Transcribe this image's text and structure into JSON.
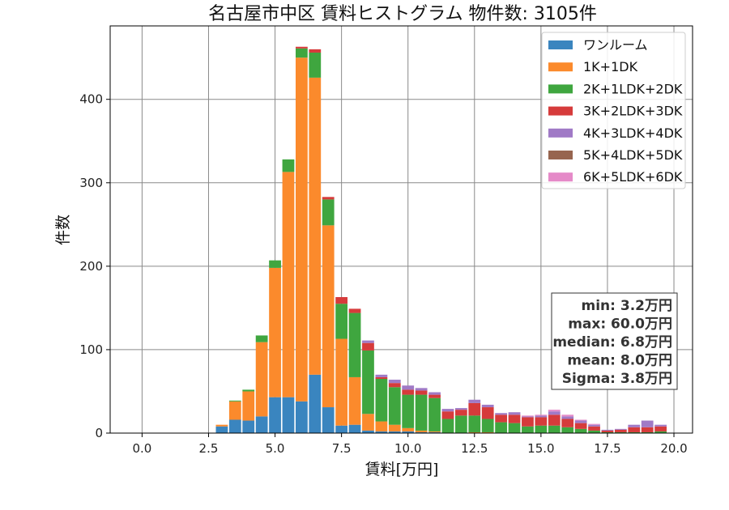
{
  "chart_data": {
    "type": "bar",
    "stacked": true,
    "title": "名古屋市中区 賃料ヒストグラム  物件数: 3105件",
    "xlabel": "賃料[万円]",
    "ylabel": "件数",
    "xlim": [
      -1.2,
      20.7
    ],
    "ylim": [
      0,
      488
    ],
    "xticks": [
      0.0,
      2.5,
      5.0,
      7.5,
      10.0,
      12.5,
      15.0,
      17.5,
      20.0
    ],
    "xtick_labels": [
      "0.0",
      "2.5",
      "5.0",
      "7.5",
      "10.0",
      "12.5",
      "15.0",
      "17.5",
      "20.0"
    ],
    "yticks": [
      0,
      100,
      200,
      300,
      400
    ],
    "ytick_labels": [
      "0",
      "100",
      "200",
      "300",
      "400"
    ],
    "grid": true,
    "legend_position": "top-right",
    "bin_width": 0.5,
    "x": [
      3.0,
      3.5,
      4.0,
      4.5,
      5.0,
      5.5,
      6.0,
      6.5,
      7.0,
      7.5,
      8.0,
      8.5,
      9.0,
      9.5,
      10.0,
      10.5,
      11.0,
      11.5,
      12.0,
      12.5,
      13.0,
      13.5,
      14.0,
      14.5,
      15.0,
      15.5,
      16.0,
      16.5,
      17.0,
      17.5,
      18.0,
      18.5,
      19.0,
      19.5
    ],
    "series": [
      {
        "name": "ワンルーム",
        "color": "#3a85bf",
        "values": [
          8,
          16,
          15,
          20,
          43,
          43,
          38,
          70,
          31,
          9,
          10,
          3,
          2,
          2,
          2,
          1,
          1,
          0,
          0,
          0,
          0,
          0,
          0,
          0,
          0,
          0,
          0,
          0,
          0,
          0,
          0,
          0,
          0,
          0
        ]
      },
      {
        "name": "1K+1DK",
        "color": "#fb8a2c",
        "values": [
          2,
          22,
          35,
          89,
          155,
          270,
          412,
          356,
          218,
          104,
          57,
          20,
          12,
          8,
          4,
          2,
          1,
          0,
          0,
          1,
          1,
          0,
          0,
          0,
          0,
          0,
          0,
          0,
          0,
          0,
          0,
          0,
          0,
          0
        ]
      },
      {
        "name": "2K+1LDK+2DK",
        "color": "#3fa63f",
        "values": [
          0,
          1,
          2,
          8,
          9,
          15,
          11,
          30,
          31,
          42,
          77,
          76,
          51,
          45,
          40,
          43,
          40,
          17,
          21,
          20,
          16,
          13,
          12,
          8,
          9,
          9,
          7,
          5,
          3,
          1,
          1,
          1,
          1,
          2
        ]
      },
      {
        "name": "3K+2LDK+3DK",
        "color": "#d63b3b",
        "values": [
          0,
          0,
          0,
          0,
          0,
          0,
          2,
          4,
          3,
          8,
          5,
          9,
          2,
          5,
          6,
          5,
          4,
          9,
          7,
          15,
          14,
          9,
          10,
          11,
          10,
          13,
          10,
          7,
          5,
          2,
          3,
          6,
          6,
          6
        ]
      },
      {
        "name": "4K+3LDK+4DK",
        "color": "#a07ac6",
        "values": [
          0,
          0,
          0,
          0,
          0,
          0,
          0,
          0,
          0,
          0,
          0,
          3,
          3,
          4,
          5,
          3,
          3,
          3,
          2,
          4,
          3,
          2,
          3,
          1,
          2,
          4,
          3,
          3,
          2,
          1,
          1,
          3,
          8,
          2
        ]
      },
      {
        "name": "5K+4LDK+5DK",
        "color": "#97654f",
        "values": [
          0,
          0,
          0,
          0,
          0,
          0,
          0,
          0,
          0,
          0,
          0,
          0,
          0,
          0,
          0,
          0,
          0,
          0,
          0,
          0,
          0,
          0,
          0,
          0,
          0,
          0,
          0,
          0,
          0,
          0,
          0,
          0,
          0,
          0
        ]
      },
      {
        "name": "6K+5LDK+6DK",
        "color": "#e58ac8",
        "values": [
          0,
          0,
          0,
          0,
          0,
          0,
          0,
          0,
          0,
          0,
          0,
          0,
          0,
          0,
          0,
          0,
          0,
          0,
          0,
          0,
          0,
          0,
          0,
          1,
          1,
          2,
          2,
          1,
          1,
          0,
          0,
          0,
          0,
          0
        ]
      }
    ],
    "stats": [
      "min: 3.2万円",
      "max: 60.0万円",
      "median: 6.8万円",
      "mean: 8.0万円",
      "Sigma: 3.8万円"
    ]
  }
}
